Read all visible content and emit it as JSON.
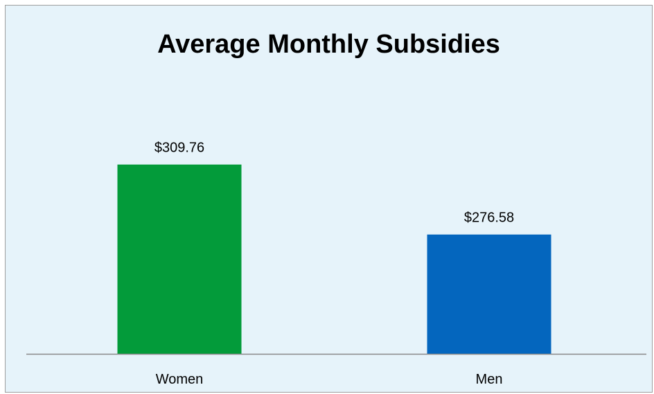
{
  "chart_data": {
    "type": "bar",
    "title": "Average Monthly Subsidies",
    "categories": [
      "Women",
      "Men"
    ],
    "values": [
      309.76,
      276.58
    ],
    "value_labels": [
      "$309.76",
      "$276.58"
    ],
    "colors": [
      "#039B3A",
      "#0466BE"
    ],
    "background": "#E6F3FA",
    "ylim": [
      220,
      330
    ],
    "grid": false,
    "xlabel": "",
    "ylabel": ""
  }
}
